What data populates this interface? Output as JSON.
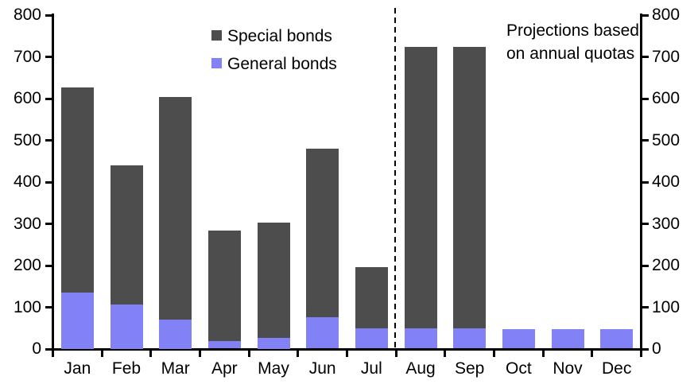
{
  "chart_data": {
    "type": "bar",
    "stacked": true,
    "title": "",
    "xlabel": "",
    "ylabel": "",
    "categories": [
      "Jan",
      "Feb",
      "Mar",
      "Apr",
      "May",
      "Jun",
      "Jul",
      "Aug",
      "Sep",
      "Oct",
      "Nov",
      "Dec"
    ],
    "series": [
      {
        "name": "Special bonds",
        "color": "#4D4D4D",
        "stack_position": "top",
        "values": [
          490,
          335,
          532,
          264,
          276,
          404,
          148,
          674,
          674,
          0,
          0,
          0
        ]
      },
      {
        "name": "General bonds",
        "color": "#8282F6",
        "stack_position": "bottom",
        "values": [
          135,
          105,
          70,
          18,
          25,
          76,
          48,
          48,
          48,
          46,
          46,
          46
        ]
      }
    ],
    "stacked_totals": [
      625,
      440,
      602,
      282,
      301,
      480,
      196,
      722,
      722,
      46,
      46,
      46
    ],
    "ylim": [
      0,
      800
    ],
    "yticks": [
      0,
      100,
      200,
      300,
      400,
      500,
      600,
      700,
      800
    ],
    "ytick_labels": [
      "0",
      "100",
      "200",
      "300",
      "400",
      "500",
      "600",
      "700",
      "800"
    ],
    "axes": {
      "left": true,
      "right": true,
      "mirrored": true,
      "grid": false
    },
    "legend_position": "top-center-inside",
    "divider": {
      "after_category": "Jul",
      "style": "dashed",
      "color": "#000000"
    }
  },
  "legend": {
    "items": [
      {
        "label": "Special bonds",
        "color": "#4D4D4D"
      },
      {
        "label": "General bonds",
        "color": "#8282F6"
      }
    ]
  },
  "annotation": {
    "text": "Projections based on annual quotas"
  },
  "colors": {
    "special_bonds": "#4D4D4D",
    "general_bonds": "#8282F6",
    "axis": "#000000",
    "background": "#FFFFFF"
  }
}
